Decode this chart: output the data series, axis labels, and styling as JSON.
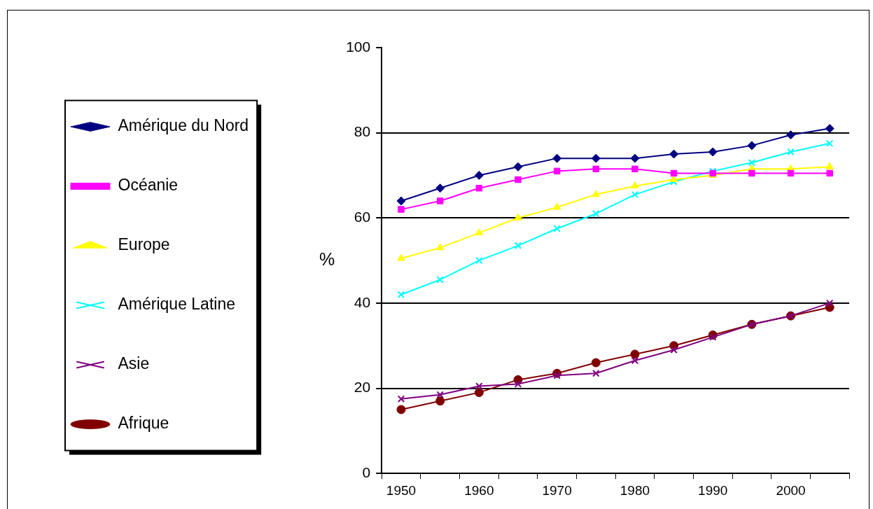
{
  "chart_data": {
    "type": "line",
    "ylabel": "%",
    "categories": [
      "1950",
      null,
      "1960",
      null,
      "1970",
      null,
      "1980",
      null,
      "1990",
      null,
      "2000",
      null
    ],
    "ylim": [
      0,
      100
    ],
    "yticks": [
      0,
      20,
      40,
      60,
      80,
      100
    ],
    "grid": "y",
    "legend": "left",
    "series": [
      {
        "name": "Amérique du Nord",
        "color": "#000080",
        "marker": "diamond",
        "values": [
          64,
          67,
          70,
          72,
          74,
          74,
          74,
          75,
          75.5,
          77,
          79.5,
          81
        ]
      },
      {
        "name": "Océanie",
        "color": "#ff00ff",
        "marker": "square",
        "values": [
          62,
          64,
          67,
          69,
          71,
          71.5,
          71.5,
          70.5,
          70.5,
          70.5,
          70.5,
          70.5
        ]
      },
      {
        "name": "Europe",
        "color": "#ffff00",
        "marker": "triangle",
        "values": [
          50.5,
          53,
          56.5,
          60,
          62.5,
          65.5,
          67.5,
          69,
          70,
          71.5,
          71.5,
          72
        ]
      },
      {
        "name": "Amérique Latine",
        "color": "#00ffff",
        "marker": "cross",
        "values": [
          42,
          45.5,
          50,
          53.5,
          57.5,
          61,
          65.5,
          68.5,
          71,
          73,
          75.5,
          77.5
        ]
      },
      {
        "name": "Asie",
        "color": "#800080",
        "marker": "cross",
        "values": [
          17.5,
          18.5,
          20.5,
          21,
          23,
          23.5,
          26.5,
          29,
          32,
          35,
          37,
          40
        ]
      },
      {
        "name": "Afrique",
        "color": "#800000",
        "marker": "circle",
        "values": [
          15,
          17,
          19,
          22,
          23.5,
          26,
          28,
          30,
          32.5,
          35,
          37,
          39
        ]
      }
    ]
  }
}
